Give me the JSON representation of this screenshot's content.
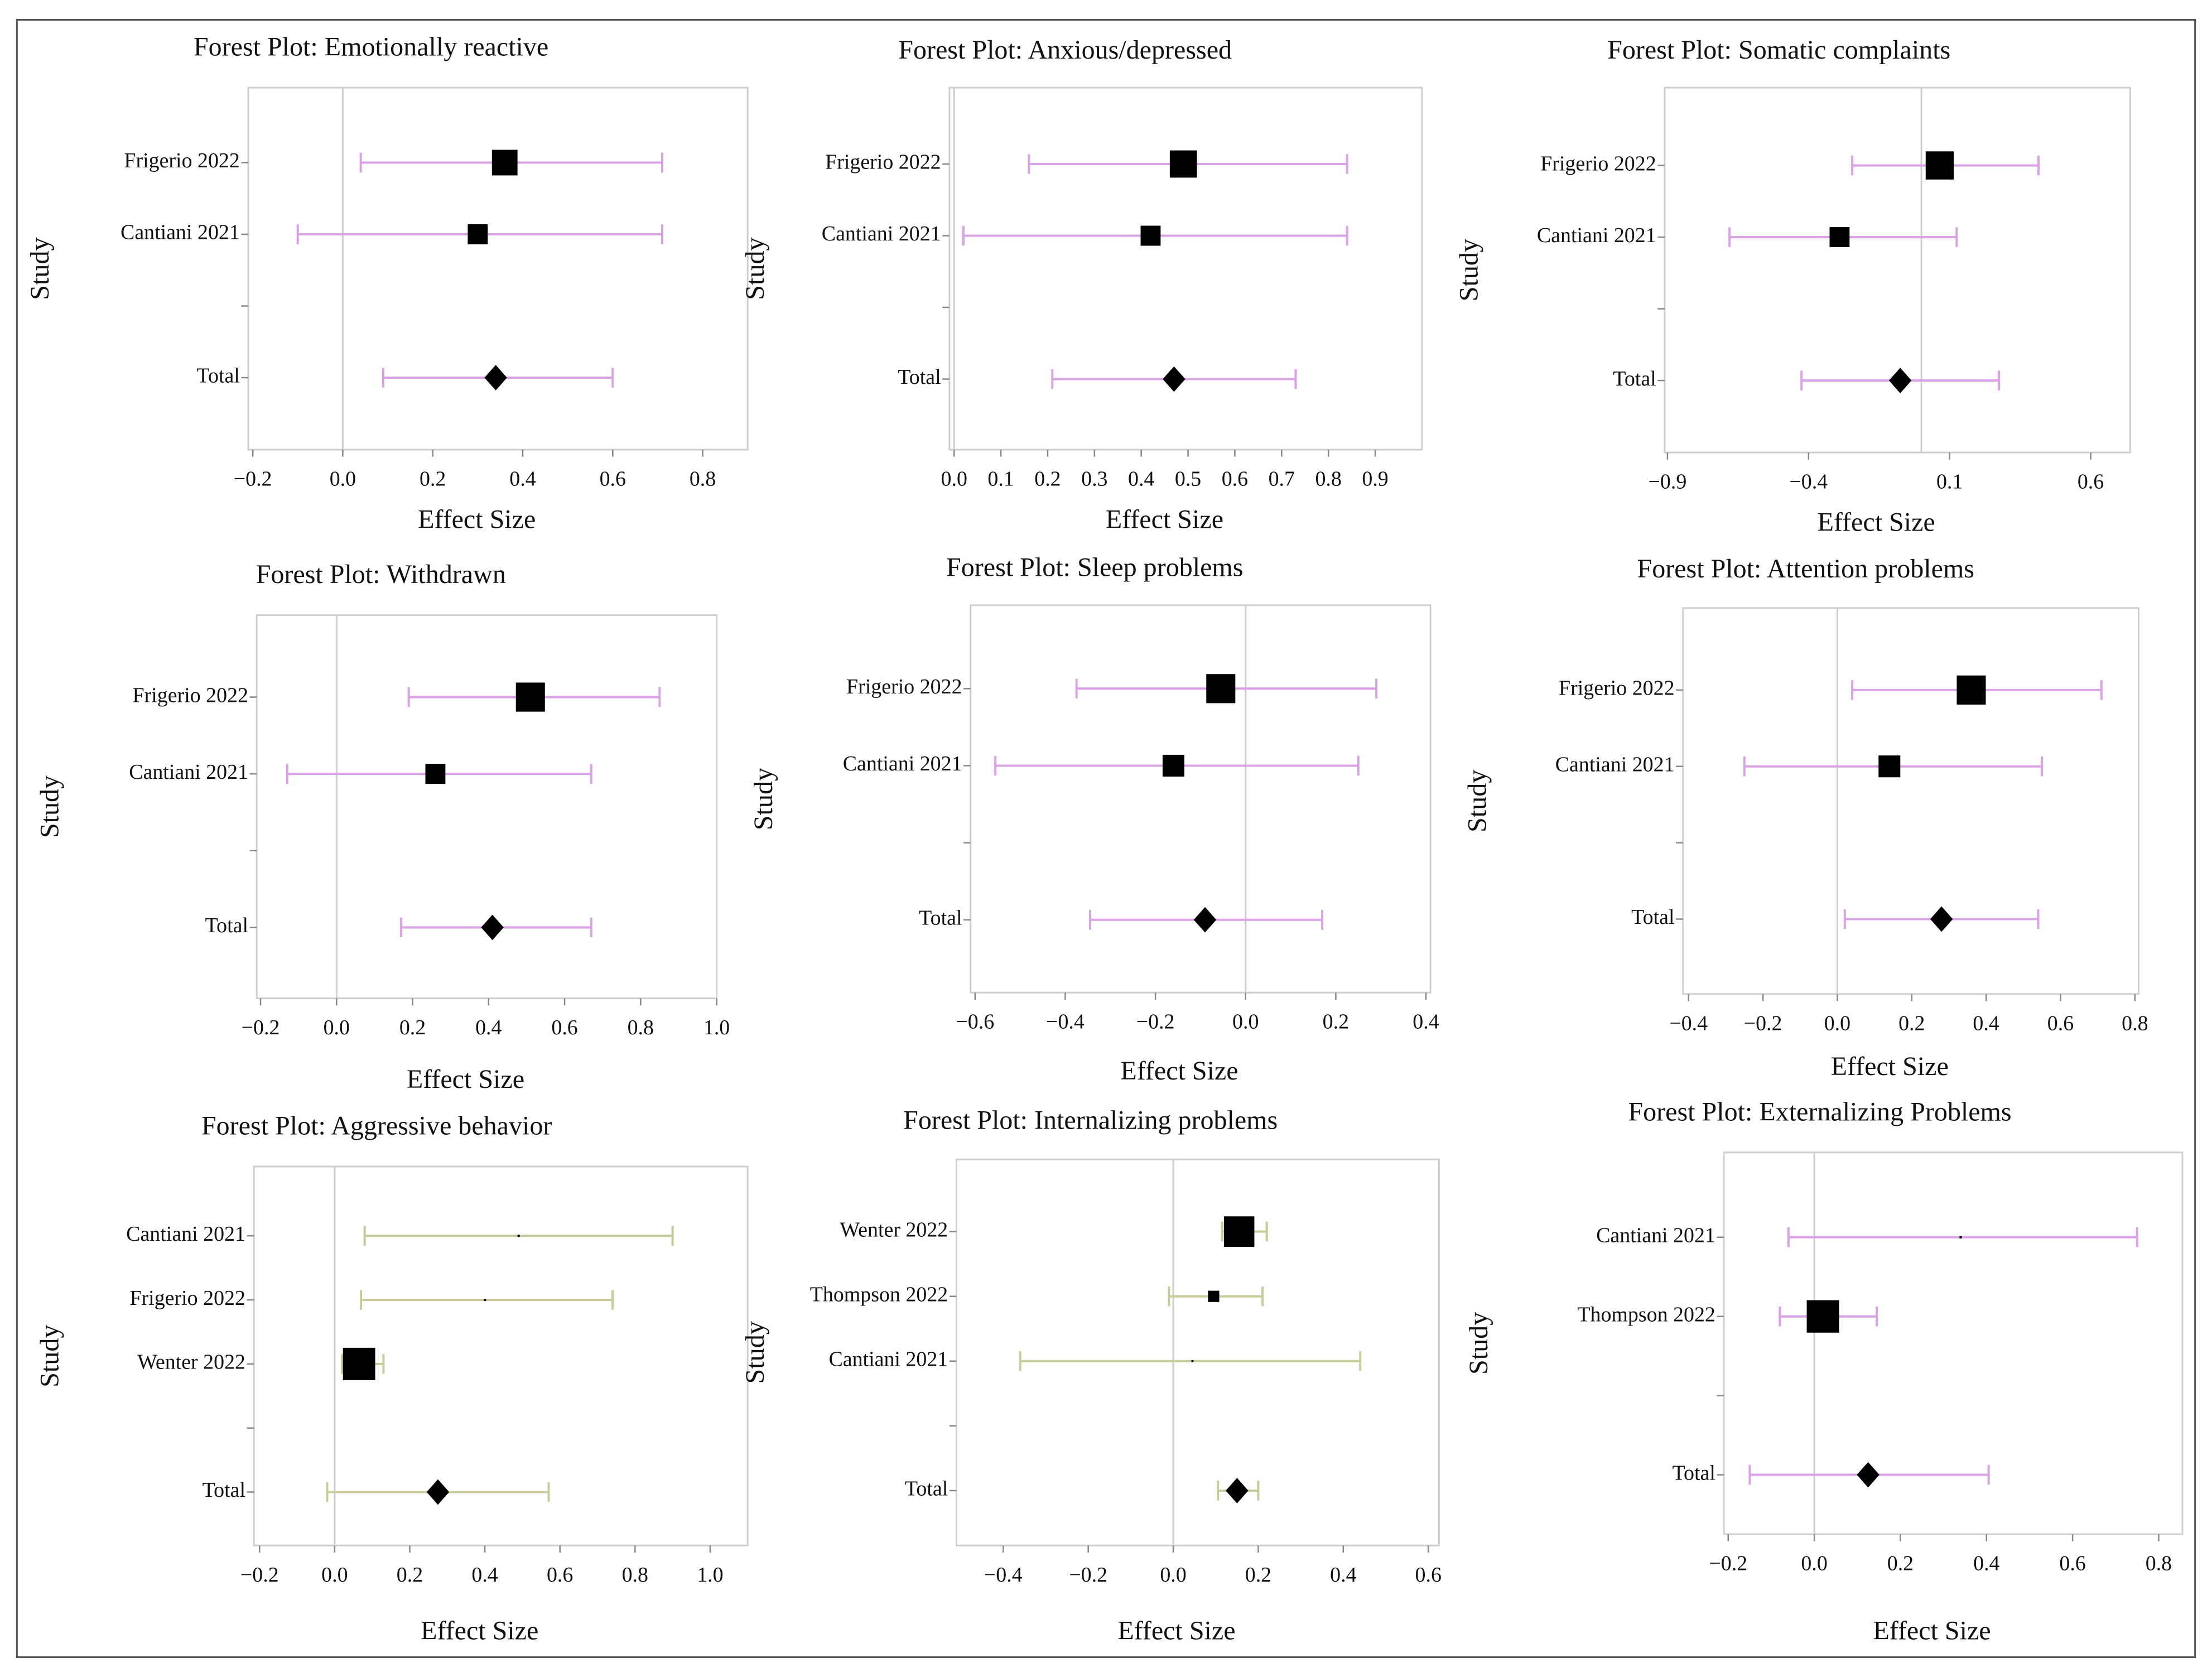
{
  "chart_data": [
    {
      "type": "forest",
      "title": "Forest Plot: Emotionally reactive",
      "xlabel": "Effect Size",
      "ylabel": "Study",
      "color": "#d9a3e6",
      "categories": [
        "Frigerio 2022",
        "Cantiani 2021",
        null,
        "Total"
      ],
      "values": [
        0.36,
        0.3,
        null,
        0.34
      ],
      "lower": [
        0.04,
        -0.1,
        null,
        0.09
      ],
      "upper": [
        0.71,
        0.71,
        null,
        0.6
      ],
      "weights": [
        62,
        38,
        null,
        null
      ],
      "xlim": [
        -0.21,
        0.9
      ],
      "xticks": [
        {
          "value": -0.2,
          "label": "−0.2"
        },
        {
          "value": 0,
          "label": "0.0"
        },
        0.2,
        0.4,
        0.6,
        0.8
      ]
    },
    {
      "type": "forest",
      "title": "Forest Plot: Anxious/depressed",
      "xlabel": "Effect Size",
      "ylabel": "Study",
      "color": "#d9a3e6",
      "categories": [
        "Frigerio 2022",
        "Cantiani 2021",
        null,
        "Total"
      ],
      "values": [
        0.49,
        0.42,
        null,
        0.47
      ],
      "lower": [
        0.16,
        0.02,
        null,
        0.21
      ],
      "upper": [
        0.84,
        0.84,
        null,
        0.73
      ],
      "weights": [
        70,
        38,
        null,
        null
      ],
      "xlim": [
        -0.01,
        1.0
      ],
      "xticks": [
        {
          "value": 0,
          "label": "0.0"
        },
        0.1,
        0.2,
        0.3,
        0.4,
        0.5,
        0.6,
        0.7,
        0.8,
        0.9
      ]
    },
    {
      "type": "forest",
      "title": "Forest Plot: Somatic complaints",
      "xlabel": "Effect Size",
      "ylabel": "Study",
      "color": "#d9a3e6",
      "categories": [
        "Frigerio 2022",
        "Cantiani 2021",
        null,
        "Total"
      ],
      "values": [
        0.065,
        -0.29,
        null,
        -0.075
      ],
      "lower": [
        -0.245,
        -0.68,
        null,
        -0.425
      ],
      "upper": [
        0.415,
        0.125,
        null,
        0.275
      ],
      "weights": [
        75,
        38,
        null,
        null
      ],
      "xlim": [
        -0.91,
        0.74
      ],
      "xticks": [
        {
          "value": -0.9,
          "label": "−0.9"
        },
        {
          "value": -0.4,
          "label": "−0.4"
        },
        0.1,
        0.6
      ]
    },
    {
      "type": "forest",
      "title": "Forest Plot: Withdrawn",
      "xlabel": "Effect Size",
      "ylabel": "Study",
      "color": "#d9a3e6",
      "categories": [
        "Frigerio 2022",
        "Cantiani 2021",
        null,
        "Total"
      ],
      "values": [
        0.51,
        0.26,
        null,
        0.41
      ],
      "lower": [
        0.19,
        -0.13,
        null,
        0.17
      ],
      "upper": [
        0.85,
        0.67,
        null,
        0.67
      ],
      "weights": [
        80,
        38,
        null,
        null
      ],
      "xlim": [
        -0.21,
        1.0
      ],
      "xticks": [
        {
          "value": -0.2,
          "label": "−0.2"
        },
        {
          "value": 0,
          "label": "0.0"
        },
        0.2,
        0.4,
        0.6,
        0.8,
        {
          "value": 1,
          "label": "1.0"
        }
      ]
    },
    {
      "type": "forest",
      "title": "Forest Plot: Sleep problems",
      "xlabel": "Effect Size",
      "ylabel": "Study",
      "color": "#d9a3e6",
      "categories": [
        "Frigerio 2022",
        "Cantiani 2021",
        null,
        "Total"
      ],
      "values": [
        -0.055,
        -0.16,
        null,
        -0.09
      ],
      "lower": [
        -0.375,
        -0.555,
        null,
        -0.345
      ],
      "upper": [
        0.29,
        0.25,
        null,
        0.17
      ],
      "weights": [
        80,
        45,
        null,
        null
      ],
      "xlim": [
        -0.61,
        0.41
      ],
      "xticks": [
        {
          "value": -0.6,
          "label": "−0.6"
        },
        {
          "value": -0.4,
          "label": "−0.4"
        },
        {
          "value": -0.2,
          "label": "−0.2"
        },
        {
          "value": 0,
          "label": "0.0"
        },
        0.2,
        0.4
      ]
    },
    {
      "type": "forest",
      "title": "Forest Plot: Attention problems",
      "xlabel": "Effect Size",
      "ylabel": "Study",
      "color": "#d9a3e6",
      "categories": [
        "Frigerio 2022",
        "Cantiani 2021",
        null,
        "Total"
      ],
      "values": [
        0.36,
        0.14,
        null,
        0.28
      ],
      "lower": [
        0.04,
        -0.25,
        null,
        0.02
      ],
      "upper": [
        0.71,
        0.55,
        null,
        0.54
      ],
      "weights": [
        80,
        45,
        null,
        null
      ],
      "xlim": [
        -0.415,
        0.81
      ],
      "xticks": [
        {
          "value": -0.4,
          "label": "−0.4"
        },
        {
          "value": -0.2,
          "label": "−0.2"
        },
        {
          "value": 0,
          "label": "0.0"
        },
        0.2,
        0.4,
        0.6,
        0.8
      ]
    },
    {
      "type": "forest",
      "title": "Forest Plot: Aggressive behavior",
      "xlabel": "Effect Size",
      "ylabel": "Study",
      "color": "#c9cc9a",
      "categories": [
        "Cantiani 2021",
        "Frigerio 2022",
        "Wenter 2022",
        null,
        "Total"
      ],
      "values": [
        0.49,
        0.4,
        0.065,
        null,
        0.275
      ],
      "lower": [
        0.08,
        0.07,
        0.02,
        null,
        -0.02
      ],
      "upper": [
        0.9,
        0.74,
        0.13,
        null,
        0.57
      ],
      "weights": [
        0.5,
        0.5,
        99,
        null,
        null
      ],
      "xlim": [
        -0.215,
        1.1
      ],
      "xticks": [
        {
          "value": -0.2,
          "label": "−0.2"
        },
        {
          "value": 0,
          "label": "0.0"
        },
        0.2,
        0.4,
        0.6,
        0.8,
        {
          "value": 1,
          "label": "1.0"
        }
      ]
    },
    {
      "type": "forest",
      "title": "Forest Plot: Internalizing problems",
      "xlabel": "Effect Size",
      "ylabel": "Study",
      "color": "#c9cc9a",
      "categories": [
        "Wenter 2022",
        "Thompson 2022",
        "Cantiani 2021",
        null,
        "Total"
      ],
      "values": [
        0.155,
        0.095,
        0.045,
        null,
        0.15
      ],
      "lower": [
        0.115,
        -0.01,
        -0.36,
        null,
        0.105
      ],
      "upper": [
        0.22,
        0.21,
        0.44,
        null,
        0.2
      ],
      "weights": [
        88,
        12,
        0.4,
        null,
        null
      ],
      "xlim": [
        -0.51,
        0.625
      ],
      "xticks": [
        {
          "value": -0.4,
          "label": "−0.4"
        },
        {
          "value": -0.2,
          "label": "−0.2"
        },
        {
          "value": 0,
          "label": "0.0"
        },
        0.2,
        0.4,
        0.6
      ]
    },
    {
      "type": "forest",
      "title": "Forest Plot: Externalizing Problems",
      "xlabel": "Effect Size",
      "ylabel": "Study",
      "color": "#d9a3e6",
      "categories": [
        "Cantiani 2021",
        "Thompson 2022",
        null,
        "Total"
      ],
      "values": [
        0.34,
        0.02,
        null,
        0.125
      ],
      "lower": [
        -0.06,
        -0.08,
        null,
        -0.15
      ],
      "upper": [
        0.75,
        0.145,
        null,
        0.405
      ],
      "weights": [
        0.5,
        99.5,
        null,
        null
      ],
      "xlim": [
        -0.21,
        0.855
      ],
      "xticks": [
        {
          "value": -0.2,
          "label": "−0.2"
        },
        {
          "value": 0,
          "label": "0.0"
        },
        0.2,
        0.4,
        0.6,
        0.8
      ]
    }
  ]
}
